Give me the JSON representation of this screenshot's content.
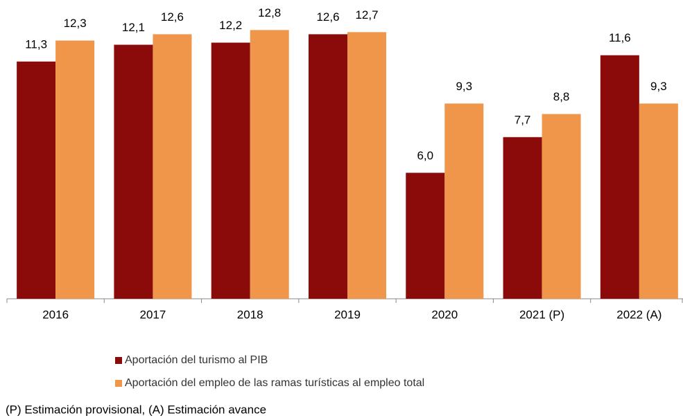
{
  "chart_data": {
    "type": "bar",
    "categories": [
      "2016",
      "2017",
      "2018",
      "2019",
      "2020",
      "2021 (P)",
      "2022 (A)"
    ],
    "series": [
      {
        "name": "Aportación del turismo al PIB",
        "color": "#8b0a0a",
        "values": [
          11.3,
          12.1,
          12.2,
          12.6,
          6.0,
          7.7,
          11.6
        ],
        "value_labels": [
          "11,3",
          "12,1",
          "12,2",
          "12,6",
          "6,0",
          "7,7",
          "11,6"
        ]
      },
      {
        "name": "Aportación del empleo de las ramas turísticas al empleo total",
        "color": "#f0964a",
        "values": [
          12.3,
          12.6,
          12.8,
          12.7,
          9.3,
          8.8,
          9.3
        ],
        "value_labels": [
          "12,3",
          "12,6",
          "12,8",
          "12,7",
          "9,3",
          "8,8",
          "9,3"
        ]
      }
    ],
    "ylim": [
      0,
      14
    ],
    "note": "(P) Estimación provisional, (A) Estimación avance"
  }
}
